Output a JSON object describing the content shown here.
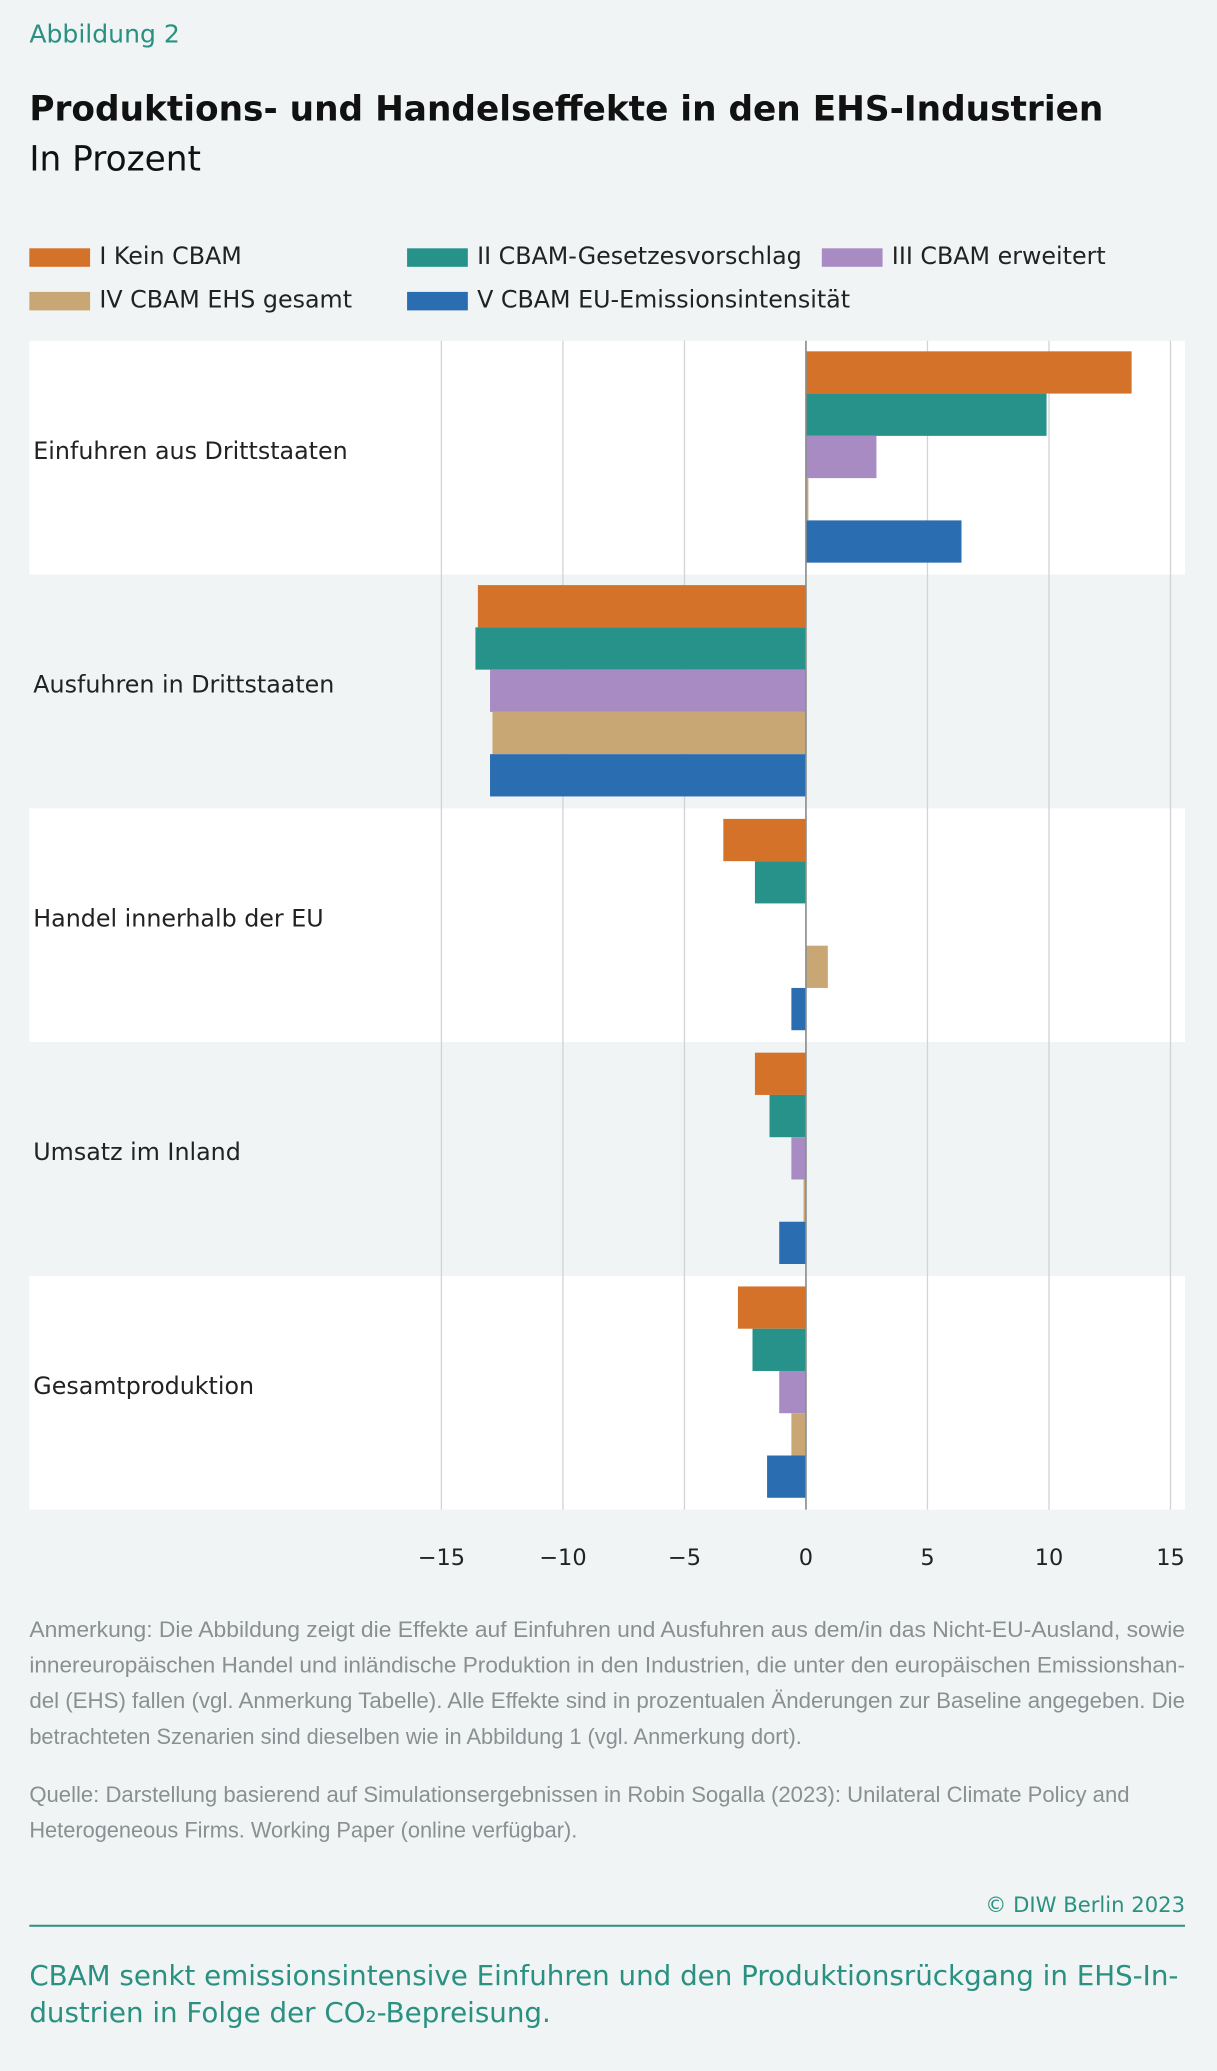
{
  "figure_label": "Abbildung 2",
  "chart_data": {
    "type": "bar",
    "orientation": "horizontal",
    "title": "Produktions- und Handelseffekte in den EHS-Industrien",
    "subtitle": "In Prozent",
    "categories": [
      "Einfuhren aus Drittstaaten",
      "Ausfuhren in Drittstaaten",
      "Handel innerhalb der EU",
      "Umsatz im Inland",
      "Gesamtproduktion"
    ],
    "series": [
      {
        "name": "I Kein CBAM",
        "color": "#d4722a",
        "values": [
          13.4,
          -13.5,
          -3.4,
          -2.1,
          -2.8
        ]
      },
      {
        "name": "II CBAM-Gesetzesvorschlag",
        "color": "#27928a",
        "values": [
          9.9,
          -13.6,
          -2.1,
          -1.5,
          -2.2
        ]
      },
      {
        "name": "III CBAM erweitert",
        "color": "#a98bc4",
        "values": [
          2.9,
          -13.0,
          0,
          -0.6,
          -1.1
        ]
      },
      {
        "name": "IV CBAM EHS gesamt",
        "color": "#c8a774",
        "values": [
          0.1,
          -12.9,
          0.9,
          -0.1,
          -0.6
        ]
      },
      {
        "name": "V CBAM EU-Emissionsintensität",
        "color": "#2a6db0",
        "values": [
          6.4,
          -13.0,
          -0.6,
          -1.1,
          -1.6
        ]
      }
    ],
    "xlim": [
      -15,
      15
    ],
    "xticks": [
      {
        "value": -15,
        "label": "−15"
      },
      {
        "value": -10,
        "label": "−10"
      },
      {
        "value": -5,
        "label": "−5"
      },
      0,
      5,
      10,
      15
    ],
    "grid": true
  },
  "note": [
    "Anmerkung: Die Abbildung zeigt die Effekte auf Einfuhren und Ausfuhren aus dem/in das Nicht-EU-Ausland, sowie",
    "innereuropäischen Handel und inländische Produktion in den Industrien, die unter den europäischen Emissionshan-",
    "del (EHS) fallen (vgl. Anmerkung Tabelle). Alle Effekte sind in prozentualen Änderungen zur Baseline angegeben. Die",
    "betrachteten Szenarien sind dieselben wie in Abbildung 1 (vgl. Anmerkung dort)."
  ],
  "source": [
    "Quelle: Darstellung basierend auf Simulationsergebnissen in Robin Sogalla (2023): Unilateral Climate Policy and",
    "Heterogeneous Firms. Working Paper (online verfügbar)."
  ],
  "copyright": "© DIW Berlin 2023",
  "summary": [
    "CBAM senkt emissionsintensive Einfuhren und den Produktionsrückgang in EHS-In-",
    "dustrien in Folge der CO₂-Bepreisung."
  ]
}
